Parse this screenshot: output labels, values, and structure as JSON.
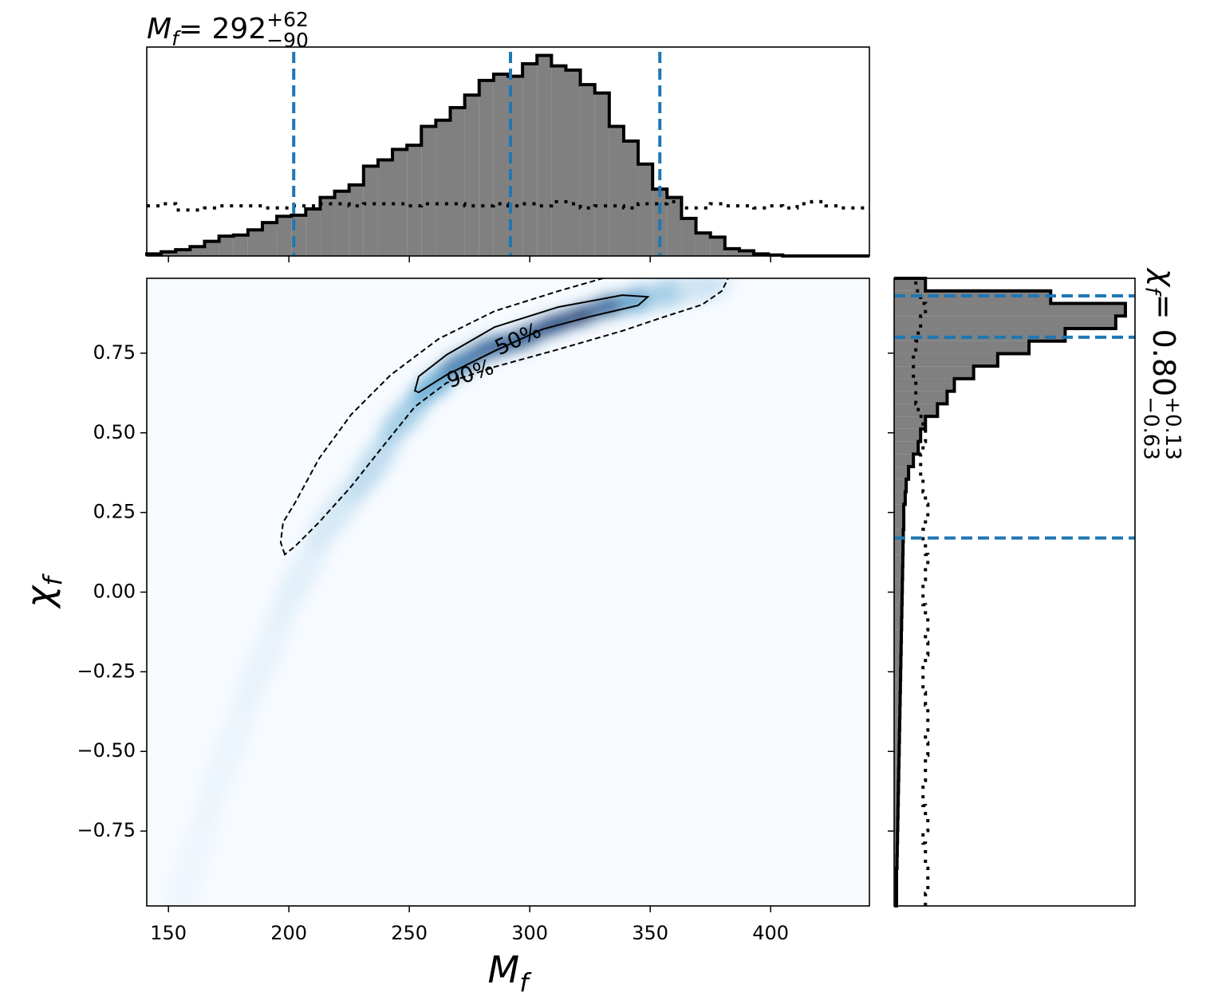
{
  "chart_data": [
    {
      "type": "histogram",
      "title": {
        "symbol": "M",
        "symbol_sub": "f",
        "rest": " = 292",
        "sup": "+62",
        "sub": "−90"
      },
      "bins": [
        141,
        147,
        153,
        159,
        165,
        171,
        177,
        183,
        189,
        195,
        201,
        207,
        213,
        219,
        225,
        231,
        237,
        243,
        249,
        255,
        261,
        267,
        273,
        279,
        285,
        291,
        297,
        303,
        309,
        315,
        321,
        327,
        333,
        339,
        345,
        351,
        357,
        363,
        369,
        375,
        381,
        387,
        393,
        399,
        405,
        411,
        417,
        423,
        429,
        435,
        441
      ],
      "values": [
        1,
        2,
        3,
        4.5,
        7,
        9.5,
        10,
        12.5,
        16,
        19,
        19.5,
        22.5,
        28,
        31,
        34,
        43,
        46,
        51,
        53,
        62,
        65,
        71,
        77,
        84,
        87,
        86,
        92,
        96,
        91,
        89,
        82,
        78,
        62,
        55,
        44,
        32,
        28,
        18,
        11,
        9,
        3.5,
        2.5,
        1,
        0.5,
        0,
        0,
        0,
        0,
        0,
        0
      ],
      "reference_values": [
        24,
        25,
        22,
        22,
        23,
        24,
        24,
        24,
        23,
        23,
        24,
        24,
        25,
        25,
        24,
        25,
        25,
        25,
        24,
        25,
        25,
        25,
        24,
        24,
        25,
        24,
        25,
        24,
        26,
        25,
        23,
        24,
        24,
        23,
        25,
        25,
        26,
        23,
        23,
        25,
        24,
        24,
        23,
        24,
        23,
        25,
        26,
        24,
        23,
        23
      ],
      "quantiles": [
        202,
        292,
        354
      ],
      "color": "#808080",
      "edgecolor": "#000000",
      "quantile_color": "#1f77b4",
      "xlim": [
        141,
        441
      ],
      "ylim": [
        0,
        100
      ],
      "xticks": [
        150,
        200,
        250,
        300,
        350,
        400
      ]
    },
    {
      "type": "density",
      "xlabel": {
        "symbol": "M",
        "symbol_sub": "f"
      },
      "ylabel": {
        "symbol": "χ",
        "symbol_sub": "f"
      },
      "xlim": [
        141,
        441
      ],
      "ylim": [
        -0.985,
        0.985
      ],
      "xticks": [
        150,
        200,
        250,
        300,
        350,
        400
      ],
      "yticks": [
        {
          "value": -0.75,
          "label": "−0.75"
        },
        {
          "value": -0.5,
          "label": "−0.50"
        },
        {
          "value": -0.25,
          "label": "−0.25"
        },
        {
          "value": 0,
          "label": "0.00"
        },
        0.25,
        {
          "value": 0.5,
          "label": "0.50"
        },
        0.75
      ],
      "colormap": [
        "#f7fbff",
        "#6baed6",
        "#08306b"
      ],
      "density": {
        "x": [
          160,
          175,
          190,
          205,
          220,
          235,
          248,
          260,
          272,
          285,
          298,
          310,
          322,
          334,
          346,
          358,
          372
        ],
        "y": [
          -0.85,
          -0.5,
          -0.2,
          0.05,
          0.25,
          0.4,
          0.55,
          0.65,
          0.72,
          0.77,
          0.8,
          0.84,
          0.87,
          0.9,
          0.92,
          0.94,
          0.96
        ],
        "values": [
          0.03,
          0.04,
          0.05,
          0.07,
          0.12,
          0.2,
          0.3,
          0.5,
          0.7,
          0.8,
          0.85,
          0.95,
          1.0,
          0.8,
          0.55,
          0.3,
          0.15
        ]
      },
      "contours": [
        {
          "label": "90%",
          "style": "dashed",
          "x": [
            198.3,
            196.6,
            197.6,
            202.6,
            212.5,
            225.8,
            242.3,
            262.2,
            285.4,
            311.9,
            335.0,
            383.0,
            379.7,
            371.5,
            358.2,
            338.4,
            311.9,
            285.4,
            265.5,
            252.3,
            239.0,
            225.8,
            212.5,
            202.6
          ],
          "y": [
            0.118,
            0.156,
            0.219,
            0.281,
            0.419,
            0.557,
            0.682,
            0.795,
            0.882,
            0.945,
            0.995,
            0.995,
            0.945,
            0.902,
            0.87,
            0.82,
            0.762,
            0.707,
            0.657,
            0.582,
            0.457,
            0.331,
            0.219,
            0.144
          ]
        },
        {
          "label": "50%",
          "style": "solid",
          "x": [
            252.3,
            253.9,
            265.5,
            285.4,
            311.9,
            338.4,
            349.0,
            345.0,
            325.1,
            305.2,
            285.4,
            265.5,
            253.9
          ],
          "y": [
            0.632,
            0.677,
            0.745,
            0.832,
            0.895,
            0.932,
            0.927,
            0.9,
            0.865,
            0.825,
            0.757,
            0.682,
            0.627
          ]
        }
      ]
    },
    {
      "type": "histogram",
      "orientation": "horizontal",
      "title": {
        "symbol": "χ",
        "symbol_sub": "f",
        "rest": " = 0.80",
        "sup": "+0.13",
        "sub": "−0.63"
      },
      "bins": [
        -0.985,
        -0.9456,
        -0.9062,
        -0.8668,
        -0.8274,
        -0.788,
        -0.7486,
        -0.7092,
        -0.6698,
        -0.6304,
        -0.591,
        -0.5516,
        -0.5122,
        -0.4728,
        -0.4334,
        -0.394,
        -0.3546,
        -0.3152,
        -0.2758,
        -0.2364,
        -0.197,
        -0.1576,
        -0.1182,
        -0.0788,
        -0.0394,
        0,
        0.0394,
        0.0788,
        0.1182,
        0.1576,
        0.197,
        0.2364,
        0.2758,
        0.3152,
        0.3546,
        0.394,
        0.4334,
        0.4728,
        0.5122,
        0.5516,
        0.591,
        0.6304,
        0.6698,
        0.7092,
        0.7486,
        0.788,
        0.8274,
        0.8668,
        0.9062,
        0.9456,
        0.985
      ],
      "values": [
        1,
        1,
        1,
        1.2,
        1.3,
        1.4,
        1.5,
        1.6,
        1.7,
        1.8,
        1.9,
        2,
        2.1,
        2.2,
        2.3,
        2.4,
        2.5,
        2.6,
        2.7,
        2.8,
        2.9,
        3,
        3.1,
        3.2,
        3.3,
        3.4,
        3.5,
        3.6,
        3.7,
        3.8,
        4,
        4,
        4.6,
        5,
        6,
        8,
        10,
        11,
        13,
        18,
        22,
        25,
        33,
        43,
        56,
        71,
        92,
        96,
        65,
        13
      ],
      "reference_values": [
        13,
        14,
        14,
        13,
        13,
        12,
        14,
        13,
        12,
        12,
        13,
        13,
        14,
        13,
        14,
        14,
        13,
        12,
        12,
        13,
        14,
        13,
        14,
        13,
        12,
        12,
        13,
        14,
        13,
        12,
        13,
        14,
        13,
        12,
        11,
        11,
        12,
        13,
        12,
        10,
        9,
        9,
        8,
        8,
        9,
        10,
        11,
        13,
        11,
        9
      ],
      "quantiles": [
        0.17,
        0.8,
        0.93
      ],
      "color": "#808080",
      "edgecolor": "#000000",
      "quantile_color": "#1f77b4",
      "xlim": [
        0,
        100
      ],
      "ylim": [
        -0.985,
        0.985
      ],
      "yticks": [
        -0.75,
        -0.5,
        -0.25,
        0,
        0.25,
        0.5,
        0.75
      ]
    }
  ]
}
